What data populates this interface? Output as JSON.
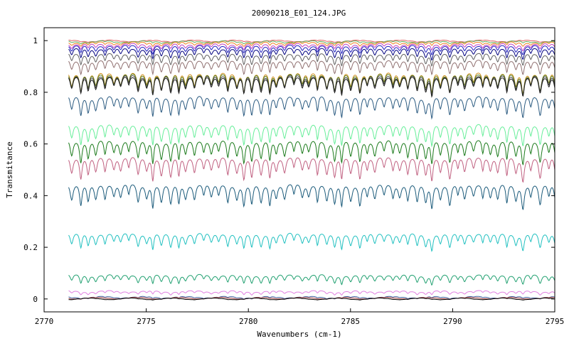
{
  "chart_data": {
    "type": "line",
    "title": "20090218_E01_124.JPG",
    "xlabel": "Wavenumbers (cm-1)",
    "ylabel": "Transmitance",
    "xlim": [
      2770,
      2795
    ],
    "ylim": [
      -0.05,
      1.05
    ],
    "x_range_data": [
      2771.2,
      2795
    ],
    "xticks": [
      2770,
      2775,
      2780,
      2785,
      2790,
      2795
    ],
    "yticks": [
      0,
      0.2,
      0.4,
      0.6,
      0.8,
      1
    ],
    "ytick_labels": [
      "0",
      "0.2",
      "0.4",
      "0.6",
      "0.8",
      "1"
    ],
    "grid": false,
    "legend": "none",
    "series": [
      {
        "baseline": 1.0,
        "depth": 0.004,
        "color": "#e06060"
      },
      {
        "baseline": 0.998,
        "depth": 0.008,
        "color": "#60b060"
      },
      {
        "baseline": 0.995,
        "depth": 0.015,
        "color": "#f08020"
      },
      {
        "baseline": 0.99,
        "depth": 0.025,
        "color": "#c040c0"
      },
      {
        "baseline": 0.985,
        "depth": 0.035,
        "color": "#2020c0"
      },
      {
        "baseline": 0.975,
        "depth": 0.045,
        "color": "#000080"
      },
      {
        "baseline": 0.955,
        "depth": 0.05,
        "color": "#606060"
      },
      {
        "baseline": 0.93,
        "depth": 0.06,
        "color": "#907070"
      },
      {
        "baseline": 0.885,
        "depth": 0.085,
        "color": "#d09020"
      },
      {
        "baseline": 0.88,
        "depth": 0.08,
        "color": "#608020"
      },
      {
        "baseline": 0.875,
        "depth": 0.08,
        "color": "#404040"
      },
      {
        "baseline": 0.87,
        "depth": 0.08,
        "color": "#202020"
      },
      {
        "baseline": 0.795,
        "depth": 0.09,
        "color": "#2a5a80"
      },
      {
        "baseline": 0.685,
        "depth": 0.09,
        "color": "#66ee99"
      },
      {
        "baseline": 0.625,
        "depth": 0.1,
        "color": "#1a7a1a"
      },
      {
        "baseline": 0.56,
        "depth": 0.1,
        "color": "#c06080"
      },
      {
        "baseline": 0.455,
        "depth": 0.1,
        "color": "#1a5a7a"
      },
      {
        "baseline": 0.262,
        "depth": 0.07,
        "color": "#20c0c0"
      },
      {
        "baseline": 0.098,
        "depth": 0.04,
        "color": "#20a070"
      },
      {
        "baseline": 0.032,
        "depth": 0.015,
        "color": "#e080e0"
      },
      {
        "baseline": 0.008,
        "depth": 0.006,
        "color": "#4060a0"
      },
      {
        "baseline": 0.004,
        "depth": 0.003,
        "color": "#a04040"
      },
      {
        "baseline": 0.001,
        "depth": 0.002,
        "color": "#000000"
      }
    ]
  }
}
